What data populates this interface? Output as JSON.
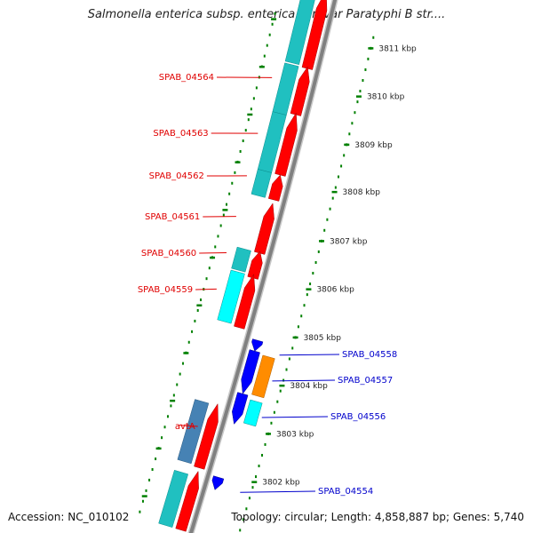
{
  "title": "Salmonella enterica subsp. enterica serovar Paratyphi B str....",
  "accession": "Accession: NC_010102",
  "topology_info": "Topology: circular; Length: 4,858,887 bp; Genes: 5,740",
  "colors": {
    "forward_cds": "#ff0000",
    "reverse_cds": "#0000ff",
    "teal": "#20c0c0",
    "cyan": "#00ffff",
    "orange": "#ff8c00",
    "steel": "#4682b4",
    "backbone": "#808080",
    "tick": "#008000"
  },
  "scale_ticks": [
    {
      "label": "3811 kbp"
    },
    {
      "label": "3810 kbp"
    },
    {
      "label": "3809 kbp"
    },
    {
      "label": "3808 kbp"
    },
    {
      "label": "3807 kbp"
    },
    {
      "label": "3806 kbp"
    },
    {
      "label": "3805 kbp"
    },
    {
      "label": "3804 kbp"
    },
    {
      "label": "3803 kbp"
    },
    {
      "label": "3802 kbp"
    }
  ],
  "labels_left": [
    {
      "text": "SPAB_04564",
      "color": "#e00000"
    },
    {
      "text": "SPAB_04563",
      "color": "#e00000"
    },
    {
      "text": "SPAB_04562",
      "color": "#e00000"
    },
    {
      "text": "SPAB_04561",
      "color": "#e00000"
    },
    {
      "text": "SPAB_04560",
      "color": "#e00000"
    },
    {
      "text": "SPAB_04559",
      "color": "#e00000"
    },
    {
      "text": "avtA",
      "color": "#e00000"
    }
  ],
  "labels_right": [
    {
      "text": "SPAB_04558",
      "color": "#0000cc"
    },
    {
      "text": "SPAB_04557",
      "color": "#0000cc"
    },
    {
      "text": "SPAB_04556",
      "color": "#0000cc"
    },
    {
      "text": "SPAB_04554",
      "color": "#0000cc"
    }
  ]
}
